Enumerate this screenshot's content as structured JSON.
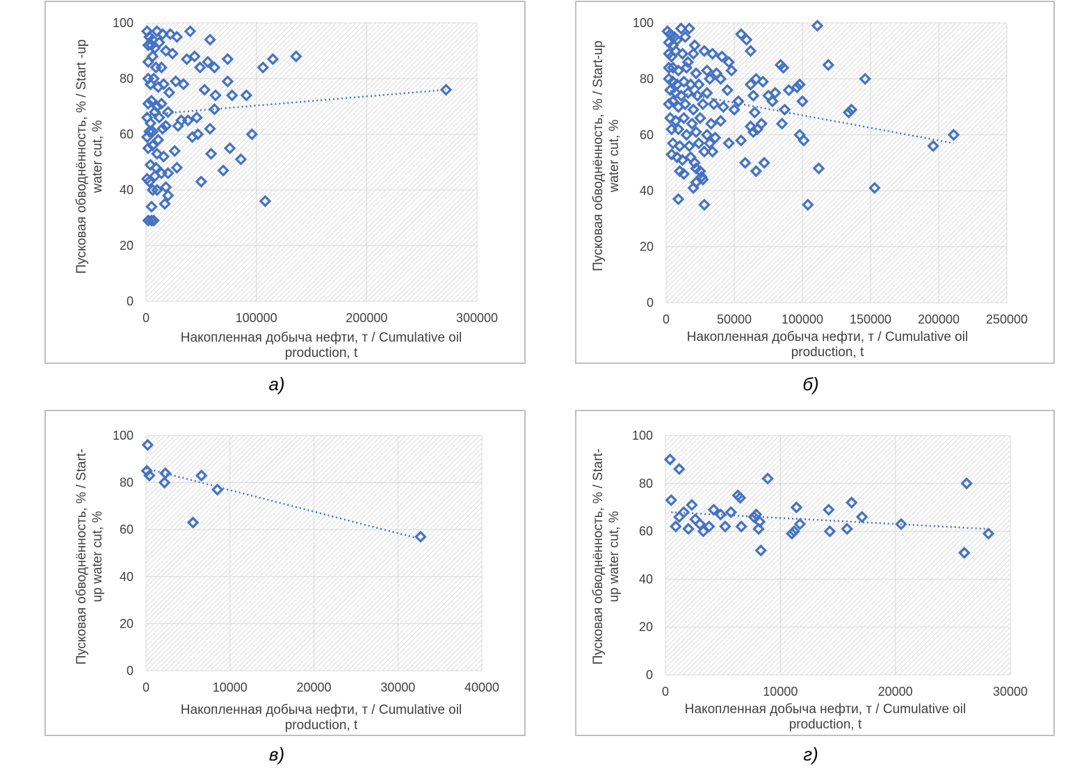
{
  "chart_data": [
    {
      "id": "a",
      "type": "scatter",
      "caption": "а)",
      "ylabel_lines": [
        "Пусковая обводнённость, % / Start -up",
        "water cut, %"
      ],
      "xlabel_lines": [
        "Накопленная добыча нефти, т / Cumulative oil",
        "production, t"
      ],
      "xlim": [
        0,
        300000
      ],
      "ylim": [
        0,
        100
      ],
      "xticks": [
        0,
        100000,
        200000,
        300000
      ],
      "yticks": [
        0,
        20,
        40,
        60,
        80,
        100
      ],
      "marker": "hollow-diamond",
      "trendline": {
        "type": "linear",
        "from": [
          0,
          67
        ],
        "to": [
          272000,
          76
        ]
      },
      "points": [
        [
          1000,
          97
        ],
        [
          3000,
          95
        ],
        [
          6000,
          94
        ],
        [
          10000,
          97
        ],
        [
          15000,
          96
        ],
        [
          22000,
          96
        ],
        [
          28000,
          95
        ],
        [
          40000,
          97
        ],
        [
          58000,
          94
        ],
        [
          2000,
          92
        ],
        [
          5000,
          92
        ],
        [
          8000,
          91
        ],
        [
          12000,
          93
        ],
        [
          18000,
          90
        ],
        [
          24000,
          89
        ],
        [
          2000,
          86
        ],
        [
          6000,
          88
        ],
        [
          9000,
          84
        ],
        [
          14000,
          84
        ],
        [
          37000,
          87
        ],
        [
          44000,
          88
        ],
        [
          49000,
          84
        ],
        [
          56000,
          86
        ],
        [
          62000,
          84
        ],
        [
          74000,
          87
        ],
        [
          106000,
          84
        ],
        [
          115000,
          87
        ],
        [
          136000,
          88
        ],
        [
          2000,
          80
        ],
        [
          4000,
          78
        ],
        [
          7000,
          80
        ],
        [
          11000,
          77
        ],
        [
          16000,
          78
        ],
        [
          21000,
          75
        ],
        [
          27000,
          79
        ],
        [
          34000,
          78
        ],
        [
          74000,
          79
        ],
        [
          53000,
          76
        ],
        [
          63000,
          74
        ],
        [
          78000,
          74
        ],
        [
          91000,
          74
        ],
        [
          2000,
          71
        ],
        [
          5000,
          72
        ],
        [
          10000,
          70
        ],
        [
          14000,
          71
        ],
        [
          20000,
          68
        ],
        [
          8000,
          68
        ],
        [
          12000,
          66
        ],
        [
          1000,
          66
        ],
        [
          4000,
          64
        ],
        [
          18000,
          63
        ],
        [
          32000,
          65
        ],
        [
          38000,
          65
        ],
        [
          46000,
          66
        ],
        [
          62000,
          69
        ],
        [
          29000,
          63
        ],
        [
          58000,
          62
        ],
        [
          272000,
          76
        ],
        [
          1000,
          59
        ],
        [
          3000,
          61
        ],
        [
          6000,
          61
        ],
        [
          11000,
          58
        ],
        [
          15000,
          62
        ],
        [
          96000,
          60
        ],
        [
          47000,
          60
        ],
        [
          42000,
          59
        ],
        [
          2000,
          55
        ],
        [
          6000,
          56
        ],
        [
          10000,
          53
        ],
        [
          16000,
          52
        ],
        [
          26000,
          54
        ],
        [
          59000,
          53
        ],
        [
          76000,
          55
        ],
        [
          86000,
          51
        ],
        [
          4000,
          49
        ],
        [
          9000,
          48
        ],
        [
          14000,
          46
        ],
        [
          20000,
          46
        ],
        [
          28000,
          48
        ],
        [
          70000,
          47
        ],
        [
          1000,
          44
        ],
        [
          3000,
          43
        ],
        [
          8000,
          45
        ],
        [
          50000,
          43
        ],
        [
          10000,
          40
        ],
        [
          6000,
          40
        ],
        [
          18000,
          41
        ],
        [
          20000,
          38
        ],
        [
          17000,
          35
        ],
        [
          5000,
          34
        ],
        [
          108000,
          36
        ],
        [
          2000,
          29
        ],
        [
          5000,
          29
        ],
        [
          7000,
          29
        ]
      ]
    },
    {
      "id": "b",
      "type": "scatter",
      "caption": "б)",
      "ylabel_lines": [
        "Пусковая обводнённость, % / Start-up",
        "water cut, %"
      ],
      "xlabel_lines": [
        "Накопленная добыча нефти, т / Cumulative oil",
        "production, t"
      ],
      "xlim": [
        0,
        250000
      ],
      "ylim": [
        0,
        100
      ],
      "xticks": [
        0,
        50000,
        100000,
        150000,
        200000,
        250000
      ],
      "yticks": [
        0,
        20,
        40,
        60,
        80,
        100
      ],
      "marker": "hollow-diamond",
      "trendline": {
        "type": "linear",
        "from": [
          0,
          76
        ],
        "to": [
          211000,
          57
        ]
      },
      "points": [
        [
          1000,
          97
        ],
        [
          3000,
          96
        ],
        [
          6000,
          95
        ],
        [
          11000,
          98
        ],
        [
          17000,
          98
        ],
        [
          2000,
          93
        ],
        [
          5000,
          92
        ],
        [
          8000,
          94
        ],
        [
          14000,
          95
        ],
        [
          21000,
          92
        ],
        [
          2000,
          89
        ],
        [
          4000,
          88
        ],
        [
          7000,
          90
        ],
        [
          12000,
          89
        ],
        [
          16000,
          86
        ],
        [
          20000,
          89
        ],
        [
          28000,
          90
        ],
        [
          34000,
          89
        ],
        [
          41000,
          88
        ],
        [
          46000,
          86
        ],
        [
          2000,
          84
        ],
        [
          5000,
          84
        ],
        [
          9000,
          83
        ],
        [
          15000,
          84
        ],
        [
          22000,
          82
        ],
        [
          30000,
          83
        ],
        [
          37000,
          82
        ],
        [
          48000,
          83
        ],
        [
          55000,
          96
        ],
        [
          59000,
          94
        ],
        [
          62000,
          90
        ],
        [
          2000,
          80
        ],
        [
          5000,
          79
        ],
        [
          8000,
          78
        ],
        [
          13000,
          79
        ],
        [
          18000,
          78
        ],
        [
          24000,
          78
        ],
        [
          32000,
          80
        ],
        [
          40000,
          80
        ],
        [
          62000,
          78
        ],
        [
          66000,
          80
        ],
        [
          71000,
          79
        ],
        [
          3000,
          76
        ],
        [
          7000,
          75
        ],
        [
          11000,
          74
        ],
        [
          16000,
          75
        ],
        [
          23000,
          74
        ],
        [
          30000,
          75
        ],
        [
          45000,
          76
        ],
        [
          53000,
          72
        ],
        [
          64000,
          74
        ],
        [
          75000,
          74
        ],
        [
          80000,
          75
        ],
        [
          90000,
          76
        ],
        [
          96000,
          77
        ],
        [
          98000,
          78
        ],
        [
          111000,
          99
        ],
        [
          119000,
          85
        ],
        [
          146000,
          80
        ],
        [
          84000,
          85
        ],
        [
          86000,
          84
        ],
        [
          2000,
          71
        ],
        [
          5000,
          72
        ],
        [
          9000,
          70
        ],
        [
          14000,
          71
        ],
        [
          20000,
          69
        ],
        [
          27000,
          71
        ],
        [
          35000,
          71
        ],
        [
          42000,
          70
        ],
        [
          50000,
          69
        ],
        [
          65000,
          68
        ],
        [
          78000,
          72
        ],
        [
          100000,
          72
        ],
        [
          87000,
          69
        ],
        [
          136000,
          69
        ],
        [
          134000,
          68
        ],
        [
          3000,
          66
        ],
        [
          7000,
          65
        ],
        [
          13000,
          66
        ],
        [
          19000,
          64
        ],
        [
          25000,
          66
        ],
        [
          33000,
          64
        ],
        [
          40000,
          65
        ],
        [
          62000,
          63
        ],
        [
          70000,
          64
        ],
        [
          85000,
          64
        ],
        [
          4000,
          62
        ],
        [
          9000,
          62
        ],
        [
          15000,
          60
        ],
        [
          22000,
          61
        ],
        [
          30000,
          60
        ],
        [
          36000,
          59
        ],
        [
          64000,
          61
        ],
        [
          67000,
          62
        ],
        [
          98000,
          60
        ],
        [
          101000,
          58
        ],
        [
          196000,
          56
        ],
        [
          211000,
          60
        ],
        [
          5000,
          57
        ],
        [
          10000,
          56
        ],
        [
          17000,
          56
        ],
        [
          24000,
          57
        ],
        [
          32000,
          57
        ],
        [
          46000,
          57
        ],
        [
          55000,
          58
        ],
        [
          34000,
          54
        ],
        [
          28000,
          54
        ],
        [
          4000,
          53
        ],
        [
          8000,
          52
        ],
        [
          12000,
          51
        ],
        [
          18000,
          52
        ],
        [
          21000,
          50
        ],
        [
          58000,
          50
        ],
        [
          72000,
          50
        ],
        [
          66000,
          47
        ],
        [
          10000,
          47
        ],
        [
          13000,
          46
        ],
        [
          22000,
          48
        ],
        [
          25000,
          47
        ],
        [
          112000,
          48
        ],
        [
          26000,
          45
        ],
        [
          22000,
          43
        ],
        [
          27000,
          44
        ],
        [
          20000,
          41
        ],
        [
          153000,
          41
        ],
        [
          9000,
          37
        ],
        [
          28000,
          35
        ],
        [
          104000,
          35
        ]
      ]
    },
    {
      "id": "v",
      "type": "scatter",
      "caption": "в)",
      "ylabel_lines": [
        "Пусковая обводнённость, % / Start-",
        "up water cut, %"
      ],
      "xlabel_lines": [
        "Накопленная добыча нефти, т / Cumulative oil",
        "production, t"
      ],
      "xlim": [
        0,
        40000
      ],
      "ylim": [
        0,
        100
      ],
      "xticks": [
        0,
        10000,
        20000,
        30000,
        40000
      ],
      "yticks": [
        0,
        20,
        40,
        60,
        80,
        100
      ],
      "marker": "hollow-diamond",
      "trendline": {
        "type": "linear",
        "from": [
          0,
          86
        ],
        "to": [
          32700,
          56
        ]
      },
      "points": [
        [
          200,
          96
        ],
        [
          100,
          85
        ],
        [
          400,
          83
        ],
        [
          2300,
          84
        ],
        [
          2200,
          80
        ],
        [
          6600,
          83
        ],
        [
          8500,
          77
        ],
        [
          5600,
          63
        ],
        [
          32700,
          57
        ]
      ]
    },
    {
      "id": "g",
      "type": "scatter",
      "caption": "г)",
      "ylabel_lines": [
        "Пусковая обводнённость, % / Start-",
        "up water cut, %"
      ],
      "xlabel_lines": [
        "Накопленная добыча нефти, т / Cumulative oil",
        "production, t"
      ],
      "xlim": [
        0,
        30000
      ],
      "ylim": [
        0,
        100
      ],
      "xticks": [
        0,
        10000,
        20000,
        30000
      ],
      "yticks": [
        0,
        20,
        40,
        60,
        80,
        100
      ],
      "marker": "hollow-diamond",
      "trendline": {
        "type": "linear",
        "from": [
          500,
          68
        ],
        "to": [
          28000,
          61
        ]
      },
      "points": [
        [
          400,
          90
        ],
        [
          1200,
          86
        ],
        [
          500,
          73
        ],
        [
          900,
          62
        ],
        [
          1200,
          66
        ],
        [
          1600,
          68
        ],
        [
          2000,
          61
        ],
        [
          2300,
          71
        ],
        [
          2600,
          65
        ],
        [
          3000,
          63
        ],
        [
          3300,
          60
        ],
        [
          3800,
          62
        ],
        [
          4200,
          69
        ],
        [
          4800,
          67
        ],
        [
          5200,
          62
        ],
        [
          5700,
          68
        ],
        [
          6300,
          75
        ],
        [
          6500,
          74
        ],
        [
          6600,
          62
        ],
        [
          7700,
          66
        ],
        [
          7900,
          67
        ],
        [
          8100,
          61
        ],
        [
          8200,
          64
        ],
        [
          8300,
          52
        ],
        [
          8900,
          82
        ],
        [
          11000,
          59
        ],
        [
          11200,
          60
        ],
        [
          11400,
          70
        ],
        [
          11700,
          63
        ],
        [
          14200,
          69
        ],
        [
          14300,
          60
        ],
        [
          15800,
          61
        ],
        [
          16200,
          72
        ],
        [
          17100,
          66
        ],
        [
          20500,
          63
        ],
        [
          26000,
          51
        ],
        [
          26200,
          80
        ],
        [
          28100,
          59
        ]
      ]
    }
  ]
}
